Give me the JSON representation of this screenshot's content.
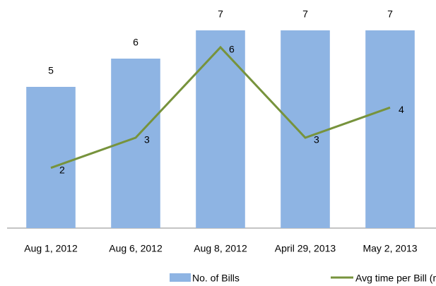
{
  "chart_data": {
    "type": "bar-line",
    "categories": [
      "Aug 1, 2012",
      "Aug 6, 2012",
      "Aug 8, 2012",
      "April 29, 2013",
      "May 2, 2013"
    ],
    "series": [
      {
        "name": "No. of Bills",
        "type": "bar",
        "color": "#8eb4e3",
        "values": [
          5,
          6,
          7,
          7,
          7
        ]
      },
      {
        "name": "Avg time per Bill (mins)",
        "type": "line",
        "color": "#77933c",
        "axis": "y2",
        "values": [
          2,
          3,
          6,
          3,
          4
        ]
      }
    ],
    "ylim": [
      0,
      8
    ],
    "y2lim": [
      0,
      7.5
    ],
    "legend": "bottom"
  }
}
